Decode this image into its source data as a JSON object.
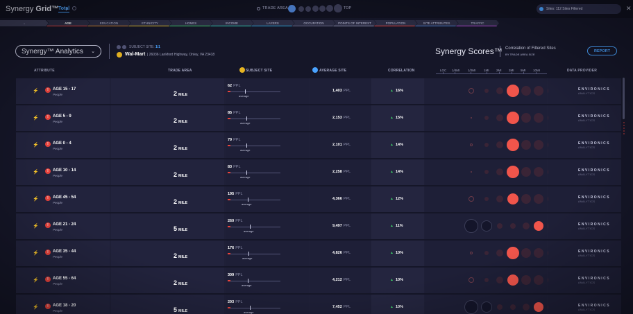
{
  "app": {
    "brand_prefix": "Synergy",
    "brand_suffix": "Grid™",
    "brand_chevron": "›",
    "tab_total": "Total"
  },
  "trade_area": {
    "label": "TRADE AREA",
    "end_label": "TOP",
    "active_value": ""
  },
  "sites": {
    "text": "Sites: 112 Sites Filtered"
  },
  "categories": [
    {
      "label": "",
      "color": "#3a3b55"
    },
    {
      "label": "AGE",
      "color": "#e8433c"
    },
    {
      "label": "EDUCATION",
      "color": "#e08b2c"
    },
    {
      "label": "ETHNICITY",
      "color": "#e6c22c"
    },
    {
      "label": "HOMES",
      "color": "#3ecf6a"
    },
    {
      "label": "INCOME",
      "color": "#2ec9b0"
    },
    {
      "label": "LAYERS",
      "color": "#2aa3d8"
    },
    {
      "label": "OCCUPATION",
      "color": "#6b6d8a"
    },
    {
      "label": "POINTS OF INTEREST",
      "color": "#8d8fac"
    },
    {
      "label": "POPULATION",
      "color": "#e8433c"
    },
    {
      "label": "SITE ATTRIBUTES",
      "color": "#4a7bc8"
    },
    {
      "label": "TRAFFIC",
      "color": "#b84ad8"
    }
  ],
  "analytics": {
    "select_label": "Synergy™ Analytics",
    "subject_label": "SUBJECT SITE:",
    "subject_count": "1/1",
    "site_name": "Wal-Mart",
    "site_address": "| 26036 Lankford Highway, Onley, VA 23418"
  },
  "synergy": {
    "title": "Synergy Scores™",
    "subtitle": "Correlation of Filtered Sites",
    "subtitle2": "BY TRADE AREA SIZE",
    "report_label": "REPORT"
  },
  "headers": {
    "attribute": "ATTRIBUTE",
    "trade_area": "TRADE AREA",
    "subject_site": "SUBJECT SITE",
    "average_site": "AVERAGE SITE",
    "correlation": "CORRELATION",
    "data_provider": "DATA PROVIDER",
    "distances": [
      "LOC",
      "1/4MI",
      "1/2MI",
      "1MI",
      "2MI",
      "3MI",
      "5MI",
      "10MI"
    ]
  },
  "rows": [
    {
      "name": "AGE 15 - 17",
      "sub": "People",
      "ta_num": "2",
      "ta_unit": "MILE",
      "subj": "62",
      "subj_unit": "PPL",
      "subj_frac": 0.05,
      "avg_frac": 0.33,
      "avg_label": "average",
      "avg": "1,403",
      "avg_unit": "PPL",
      "corr": "16%",
      "provider": "ENVIRONICS",
      "provider_sub": "ANALYTICS",
      "bubbles": [
        4,
        3,
        5,
        9,
        7,
        7,
        6
      ],
      "highlight": 3
    },
    {
      "name": "AGE 5 - 9",
      "sub": "People",
      "ta_num": "2",
      "ta_unit": "MILE",
      "subj": "85",
      "subj_unit": "PPL",
      "subj_frac": 0.05,
      "avg_frac": 0.36,
      "avg_label": "average",
      "avg": "2,153",
      "avg_unit": "PPL",
      "corr": "15%",
      "provider": "ENVIRONICS",
      "provider_sub": "ANALYTICS",
      "bubbles": [
        1,
        3,
        5,
        9,
        7,
        7,
        6
      ],
      "highlight": 3
    },
    {
      "name": "AGE 0 - 4",
      "sub": "People",
      "ta_num": "2",
      "ta_unit": "MILE",
      "subj": "79",
      "subj_unit": "PPL",
      "subj_frac": 0.05,
      "avg_frac": 0.36,
      "avg_label": "average",
      "avg": "2,101",
      "avg_unit": "PPL",
      "corr": "14%",
      "provider": "ENVIRONICS",
      "provider_sub": "ANALYTICS",
      "bubbles": [
        2,
        3,
        5,
        9,
        7,
        7,
        6
      ],
      "highlight": 3
    },
    {
      "name": "AGE 10 - 14",
      "sub": "People",
      "ta_num": "2",
      "ta_unit": "MILE",
      "subj": "83",
      "subj_unit": "PPL",
      "subj_frac": 0.05,
      "avg_frac": 0.36,
      "avg_label": "average",
      "avg": "2,258",
      "avg_unit": "PPL",
      "corr": "14%",
      "provider": "ENVIRONICS",
      "provider_sub": "ANALYTICS",
      "bubbles": [
        1,
        3,
        5,
        9,
        7,
        7,
        6
      ],
      "highlight": 3
    },
    {
      "name": "AGE 45 - 54",
      "sub": "People",
      "ta_num": "2",
      "ta_unit": "MILE",
      "subj": "195",
      "subj_unit": "PPL",
      "subj_frac": 0.05,
      "avg_frac": 0.38,
      "avg_label": "average",
      "avg": "4,366",
      "avg_unit": "PPL",
      "corr": "12%",
      "provider": "ENVIRONICS",
      "provider_sub": "ANALYTICS",
      "bubbles": [
        4,
        3,
        5,
        8,
        7,
        7,
        6
      ],
      "highlight": 3
    },
    {
      "name": "AGE 21 - 24",
      "sub": "People",
      "ta_num": "5",
      "ta_unit": "MILE",
      "subj": "260",
      "subj_unit": "PPL",
      "subj_frac": 0.05,
      "avg_frac": 0.42,
      "avg_label": "average",
      "avg": "9,497",
      "avg_unit": "PPL",
      "corr": "11%",
      "provider": "ENVIRONICS",
      "provider_sub": "ANALYTICS",
      "bubbles": [
        10,
        8,
        4,
        4,
        5,
        7,
        6
      ],
      "highlight": 5
    },
    {
      "name": "AGE 35 - 44",
      "sub": "People",
      "ta_num": "2",
      "ta_unit": "MILE",
      "subj": "176",
      "subj_unit": "PPL",
      "subj_frac": 0.05,
      "avg_frac": 0.4,
      "avg_label": "average",
      "avg": "4,826",
      "avg_unit": "PPL",
      "corr": "10%",
      "provider": "ENVIRONICS",
      "provider_sub": "ANALYTICS",
      "bubbles": [
        2,
        3,
        5,
        9,
        7,
        7,
        6
      ],
      "highlight": 3
    },
    {
      "name": "AGE 55 - 64",
      "sub": "People",
      "ta_num": "2",
      "ta_unit": "MILE",
      "subj": "309",
      "subj_unit": "PPL",
      "subj_frac": 0.05,
      "avg_frac": 0.38,
      "avg_label": "average",
      "avg": "4,212",
      "avg_unit": "PPL",
      "corr": "10%",
      "provider": "ENVIRONICS",
      "provider_sub": "ANALYTICS",
      "bubbles": [
        4,
        3,
        5,
        8,
        7,
        7,
        6
      ],
      "highlight": 3
    },
    {
      "name": "AGE 18 - 20",
      "sub": "People",
      "ta_num": "5",
      "ta_unit": "MILE",
      "subj": "293",
      "subj_unit": "PPL",
      "subj_frac": 0.05,
      "avg_frac": 0.42,
      "avg_label": "average",
      "avg": "7,452",
      "avg_unit": "PPL",
      "corr": "10%",
      "provider": "ENVIRONICS",
      "provider_sub": "ANALYTICS",
      "bubbles": [
        10,
        8,
        4,
        4,
        5,
        7,
        6
      ],
      "highlight": 5
    }
  ],
  "colors": {
    "accent": "#4aa3ff",
    "alert": "#e8433c",
    "up": "#3ecf6a",
    "subject": "#e6b422"
  }
}
